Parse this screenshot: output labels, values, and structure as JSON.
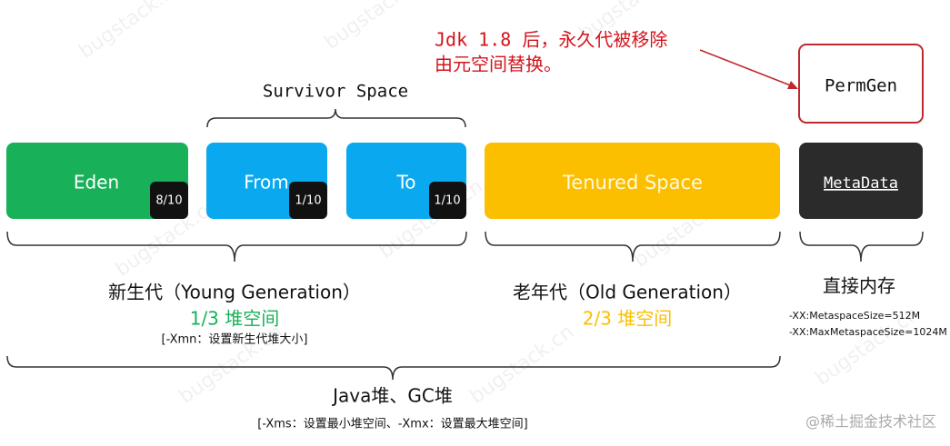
{
  "annotation": {
    "line1": "Jdk 1.8 后，永久代被移除",
    "line2": "由元空间替换。"
  },
  "survivor_label": "Survivor Space",
  "boxes": {
    "eden": {
      "label": "Eden",
      "ratio": "8/10"
    },
    "from": {
      "label": "From",
      "ratio": "1/10"
    },
    "to": {
      "label": "To",
      "ratio": "1/10"
    },
    "tenured": {
      "label": "Tenured Space"
    },
    "metadata": {
      "label": "MetaData"
    },
    "permgen": {
      "label": "PermGen"
    }
  },
  "young": {
    "title": "新生代（Young Generation）",
    "share": "1/3 堆空间",
    "param": "[-Xmn：设置新生代堆大小]"
  },
  "old": {
    "title": "老年代（Old Generation）",
    "share": "2/3 堆空间"
  },
  "direct": {
    "title": "直接内存",
    "param1": "-XX:MetaspaceSize=512M",
    "param2": "-XX:MaxMetaspaceSize=1024M"
  },
  "heap": {
    "title": "Java堆、GC堆",
    "param": "[-Xms：设置最小堆空间、-Xmx：设置最大堆空间]"
  },
  "watermark": {
    "site": "bugstack.cn",
    "credit": "@稀土掘金技术社区"
  }
}
